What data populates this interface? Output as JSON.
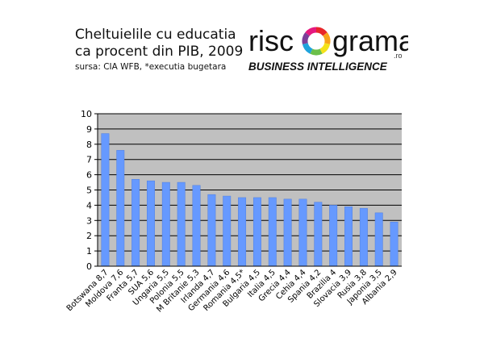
{
  "header": {
    "title_line1": "Cheltuielile cu educatia",
    "title_line2": "ca procent din PIB, 2009",
    "subtitle": "sursa: CIA WFB, *executia bugetara"
  },
  "logo": {
    "brand_left": "risc",
    "brand_right": "grama",
    "domain": ".ro",
    "tagline": "BUSINESS INTELLIGENCE",
    "ring_colors": [
      "#e8262a",
      "#f7a21b",
      "#f4e21a",
      "#6cc04a",
      "#1fa3dc",
      "#7b3f98",
      "#e5197f"
    ]
  },
  "colors": {
    "plot_bg": "#c0c0c0",
    "bar": "#6699ff",
    "bar_edge": "#4f7fe0",
    "grid": "#000000"
  },
  "chart_data": {
    "type": "bar",
    "title": "Cheltuielile cu educatia ca procent din PIB, 2009",
    "xlabel": "",
    "ylabel": "",
    "ylim": [
      0,
      10
    ],
    "yticks": [
      0,
      1,
      2,
      3,
      4,
      5,
      6,
      7,
      8,
      9,
      10
    ],
    "grid": true,
    "categories": [
      "Botswana 8,7",
      "Moldova 7,6",
      "Franta 5,7",
      "SUA 5,6",
      "Ungaria 5,5",
      "Polonia 5,5",
      "M Britanie 5,3",
      "Irlanda 4,7",
      "Germania 4,6",
      "Romania 4,5*",
      "Bulgaria 4,5",
      "Italia 4,5",
      "Grecia 4,4",
      "Cehia 4,4",
      "Spania 4,2",
      "Brazilia 4",
      "Slovacia 3,9",
      "Rusia 3,8",
      "Japonia 3,5",
      "Albania 2,9"
    ],
    "values": [
      8.7,
      7.6,
      5.7,
      5.6,
      5.5,
      5.5,
      5.3,
      4.7,
      4.6,
      4.5,
      4.5,
      4.5,
      4.4,
      4.4,
      4.2,
      4.0,
      3.9,
      3.8,
      3.5,
      2.9
    ]
  }
}
